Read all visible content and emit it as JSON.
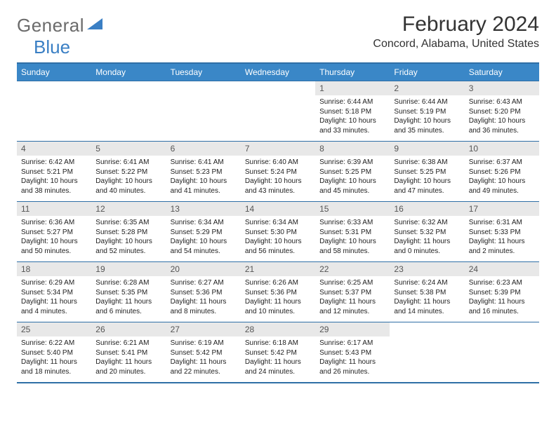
{
  "logo": {
    "text1": "General",
    "text2": "Blue"
  },
  "header": {
    "monthTitle": "February 2024",
    "location": "Concord, Alabama, United States"
  },
  "calendar": {
    "header_bg": "#3a87c7",
    "header_fg": "#ffffff",
    "border_color": "#2f6fa6",
    "daynum_bg": "#e8e8e8",
    "dayHeaders": [
      "Sunday",
      "Monday",
      "Tuesday",
      "Wednesday",
      "Thursday",
      "Friday",
      "Saturday"
    ],
    "weeks": [
      [
        {
          "num": "",
          "lines": [
            "",
            "",
            "",
            ""
          ]
        },
        {
          "num": "",
          "lines": [
            "",
            "",
            "",
            ""
          ]
        },
        {
          "num": "",
          "lines": [
            "",
            "",
            "",
            ""
          ]
        },
        {
          "num": "",
          "lines": [
            "",
            "",
            "",
            ""
          ]
        },
        {
          "num": "1",
          "lines": [
            "Sunrise: 6:44 AM",
            "Sunset: 5:18 PM",
            "Daylight: 10 hours",
            "and 33 minutes."
          ]
        },
        {
          "num": "2",
          "lines": [
            "Sunrise: 6:44 AM",
            "Sunset: 5:19 PM",
            "Daylight: 10 hours",
            "and 35 minutes."
          ]
        },
        {
          "num": "3",
          "lines": [
            "Sunrise: 6:43 AM",
            "Sunset: 5:20 PM",
            "Daylight: 10 hours",
            "and 36 minutes."
          ]
        }
      ],
      [
        {
          "num": "4",
          "lines": [
            "Sunrise: 6:42 AM",
            "Sunset: 5:21 PM",
            "Daylight: 10 hours",
            "and 38 minutes."
          ]
        },
        {
          "num": "5",
          "lines": [
            "Sunrise: 6:41 AM",
            "Sunset: 5:22 PM",
            "Daylight: 10 hours",
            "and 40 minutes."
          ]
        },
        {
          "num": "6",
          "lines": [
            "Sunrise: 6:41 AM",
            "Sunset: 5:23 PM",
            "Daylight: 10 hours",
            "and 41 minutes."
          ]
        },
        {
          "num": "7",
          "lines": [
            "Sunrise: 6:40 AM",
            "Sunset: 5:24 PM",
            "Daylight: 10 hours",
            "and 43 minutes."
          ]
        },
        {
          "num": "8",
          "lines": [
            "Sunrise: 6:39 AM",
            "Sunset: 5:25 PM",
            "Daylight: 10 hours",
            "and 45 minutes."
          ]
        },
        {
          "num": "9",
          "lines": [
            "Sunrise: 6:38 AM",
            "Sunset: 5:25 PM",
            "Daylight: 10 hours",
            "and 47 minutes."
          ]
        },
        {
          "num": "10",
          "lines": [
            "Sunrise: 6:37 AM",
            "Sunset: 5:26 PM",
            "Daylight: 10 hours",
            "and 49 minutes."
          ]
        }
      ],
      [
        {
          "num": "11",
          "lines": [
            "Sunrise: 6:36 AM",
            "Sunset: 5:27 PM",
            "Daylight: 10 hours",
            "and 50 minutes."
          ]
        },
        {
          "num": "12",
          "lines": [
            "Sunrise: 6:35 AM",
            "Sunset: 5:28 PM",
            "Daylight: 10 hours",
            "and 52 minutes."
          ]
        },
        {
          "num": "13",
          "lines": [
            "Sunrise: 6:34 AM",
            "Sunset: 5:29 PM",
            "Daylight: 10 hours",
            "and 54 minutes."
          ]
        },
        {
          "num": "14",
          "lines": [
            "Sunrise: 6:34 AM",
            "Sunset: 5:30 PM",
            "Daylight: 10 hours",
            "and 56 minutes."
          ]
        },
        {
          "num": "15",
          "lines": [
            "Sunrise: 6:33 AM",
            "Sunset: 5:31 PM",
            "Daylight: 10 hours",
            "and 58 minutes."
          ]
        },
        {
          "num": "16",
          "lines": [
            "Sunrise: 6:32 AM",
            "Sunset: 5:32 PM",
            "Daylight: 11 hours",
            "and 0 minutes."
          ]
        },
        {
          "num": "17",
          "lines": [
            "Sunrise: 6:31 AM",
            "Sunset: 5:33 PM",
            "Daylight: 11 hours",
            "and 2 minutes."
          ]
        }
      ],
      [
        {
          "num": "18",
          "lines": [
            "Sunrise: 6:29 AM",
            "Sunset: 5:34 PM",
            "Daylight: 11 hours",
            "and 4 minutes."
          ]
        },
        {
          "num": "19",
          "lines": [
            "Sunrise: 6:28 AM",
            "Sunset: 5:35 PM",
            "Daylight: 11 hours",
            "and 6 minutes."
          ]
        },
        {
          "num": "20",
          "lines": [
            "Sunrise: 6:27 AM",
            "Sunset: 5:36 PM",
            "Daylight: 11 hours",
            "and 8 minutes."
          ]
        },
        {
          "num": "21",
          "lines": [
            "Sunrise: 6:26 AM",
            "Sunset: 5:36 PM",
            "Daylight: 11 hours",
            "and 10 minutes."
          ]
        },
        {
          "num": "22",
          "lines": [
            "Sunrise: 6:25 AM",
            "Sunset: 5:37 PM",
            "Daylight: 11 hours",
            "and 12 minutes."
          ]
        },
        {
          "num": "23",
          "lines": [
            "Sunrise: 6:24 AM",
            "Sunset: 5:38 PM",
            "Daylight: 11 hours",
            "and 14 minutes."
          ]
        },
        {
          "num": "24",
          "lines": [
            "Sunrise: 6:23 AM",
            "Sunset: 5:39 PM",
            "Daylight: 11 hours",
            "and 16 minutes."
          ]
        }
      ],
      [
        {
          "num": "25",
          "lines": [
            "Sunrise: 6:22 AM",
            "Sunset: 5:40 PM",
            "Daylight: 11 hours",
            "and 18 minutes."
          ]
        },
        {
          "num": "26",
          "lines": [
            "Sunrise: 6:21 AM",
            "Sunset: 5:41 PM",
            "Daylight: 11 hours",
            "and 20 minutes."
          ]
        },
        {
          "num": "27",
          "lines": [
            "Sunrise: 6:19 AM",
            "Sunset: 5:42 PM",
            "Daylight: 11 hours",
            "and 22 minutes."
          ]
        },
        {
          "num": "28",
          "lines": [
            "Sunrise: 6:18 AM",
            "Sunset: 5:42 PM",
            "Daylight: 11 hours",
            "and 24 minutes."
          ]
        },
        {
          "num": "29",
          "lines": [
            "Sunrise: 6:17 AM",
            "Sunset: 5:43 PM",
            "Daylight: 11 hours",
            "and 26 minutes."
          ]
        },
        {
          "num": "",
          "lines": [
            "",
            "",
            "",
            ""
          ]
        },
        {
          "num": "",
          "lines": [
            "",
            "",
            "",
            ""
          ]
        }
      ]
    ]
  }
}
